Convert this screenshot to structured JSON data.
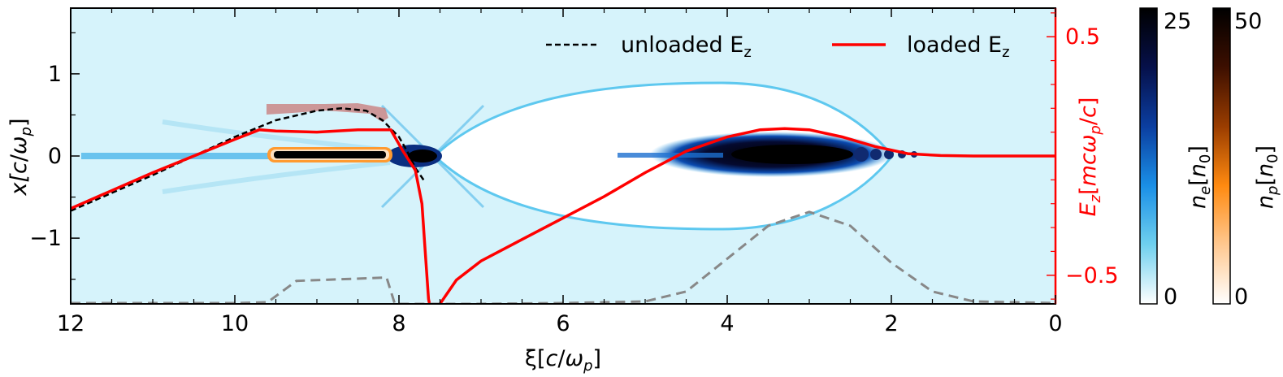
{
  "chart_data": {
    "type": "line",
    "main": {
      "xlabel": "ξ[c/ω_p]",
      "xlabel_parts": [
        "ξ[",
        "c",
        "/",
        "ω",
        "p",
        "]"
      ],
      "ylabel_parts": [
        "x[",
        "c",
        "/",
        "ω",
        "p",
        "]"
      ],
      "y2label_parts": [
        "E",
        "z",
        "[",
        "mcω",
        "p",
        "/",
        "c",
        "]"
      ],
      "xlim": [
        12,
        0
      ],
      "ylim": [
        -1.8,
        1.8
      ],
      "y2lim": [
        -0.62,
        0.62
      ],
      "xticks": [
        12,
        10,
        8,
        6,
        4,
        2,
        0
      ],
      "xtick_labels": [
        "12",
        "10",
        "8",
        "6",
        "4",
        "2",
        "0"
      ],
      "yticks": [
        1,
        0,
        -1
      ],
      "ytick_labels": [
        "1",
        "0",
        "−1"
      ],
      "y2ticks": [
        0.5,
        -0.5
      ],
      "y2tick_labels": [
        "0.5",
        "−0.5"
      ],
      "background_color": "#d6f3fb"
    },
    "legend": {
      "placement": "top-right",
      "entries": [
        {
          "text": "unloaded E",
          "sub": "z",
          "style": "dashed",
          "color": "#000000"
        },
        {
          "text": "loaded E",
          "sub": "z",
          "style": "solid",
          "color": "#ff0000"
        }
      ]
    },
    "series": [
      {
        "axis": "right",
        "color": "#000000",
        "style": "dashed",
        "points": [
          [
            12.0,
            -0.23
          ],
          [
            11.0,
            -0.08
          ],
          [
            10.0,
            0.08
          ],
          [
            9.5,
            0.15
          ],
          [
            9.0,
            0.19
          ],
          [
            8.7,
            0.2
          ],
          [
            8.4,
            0.19
          ],
          [
            8.2,
            0.15
          ],
          [
            8.0,
            0.08
          ],
          [
            7.9,
            0.02
          ],
          [
            7.8,
            -0.05
          ],
          [
            7.7,
            -0.1
          ]
        ]
      },
      {
        "axis": "right",
        "color": "#ff0000",
        "style": "solid",
        "points": [
          [
            12.0,
            -0.22
          ],
          [
            11.0,
            -0.07
          ],
          [
            10.0,
            0.07
          ],
          [
            9.7,
            0.11
          ],
          [
            9.5,
            0.105
          ],
          [
            9.0,
            0.1
          ],
          [
            8.5,
            0.11
          ],
          [
            8.1,
            0.11
          ],
          [
            7.95,
            0.02
          ],
          [
            7.8,
            -0.06
          ],
          [
            7.72,
            -0.2
          ],
          [
            7.68,
            -0.4
          ],
          [
            7.64,
            -0.6
          ],
          [
            7.58,
            -0.7
          ],
          [
            7.5,
            -0.62
          ],
          [
            7.3,
            -0.52
          ],
          [
            7.0,
            -0.44
          ],
          [
            6.5,
            -0.35
          ],
          [
            6.0,
            -0.26
          ],
          [
            5.5,
            -0.17
          ],
          [
            5.0,
            -0.07
          ],
          [
            4.5,
            0.02
          ],
          [
            4.0,
            0.08
          ],
          [
            3.6,
            0.11
          ],
          [
            3.3,
            0.115
          ],
          [
            3.0,
            0.11
          ],
          [
            2.6,
            0.08
          ],
          [
            2.2,
            0.04
          ],
          [
            1.8,
            0.01
          ],
          [
            1.4,
            0.002
          ],
          [
            1.0,
            0.0
          ],
          [
            0.0,
            0.0
          ]
        ]
      },
      {
        "axis": "left",
        "color": "#888888",
        "style": "dashed",
        "role": "driver-profile",
        "points": [
          [
            12.0,
            -1.79
          ],
          [
            10.0,
            -1.79
          ],
          [
            9.6,
            -1.78
          ],
          [
            9.25,
            -1.52
          ],
          [
            8.15,
            -1.48
          ],
          [
            8.05,
            -1.8
          ],
          [
            7.0,
            -1.8
          ],
          [
            6.0,
            -1.79
          ],
          [
            5.0,
            -1.77
          ],
          [
            4.5,
            -1.65
          ],
          [
            4.0,
            -1.25
          ],
          [
            3.5,
            -0.85
          ],
          [
            3.0,
            -0.68
          ],
          [
            2.5,
            -0.85
          ],
          [
            2.0,
            -1.3
          ],
          [
            1.5,
            -1.65
          ],
          [
            1.0,
            -1.77
          ],
          [
            0.0,
            -1.79
          ]
        ]
      }
    ],
    "colorbars": [
      {
        "label_parts": [
          "n",
          "e",
          "[",
          "n",
          "0",
          "]"
        ],
        "tick_labels": [
          "25",
          "0"
        ],
        "range": [
          0,
          25
        ],
        "colors": [
          "#ffffff",
          "#6fd0ee",
          "#1a8fe6",
          "#0b3ea0",
          "#06104a",
          "#000000"
        ]
      },
      {
        "label_parts": [
          "n",
          "p",
          "[",
          "n",
          "0",
          "]"
        ],
        "tick_labels": [
          "50",
          "0"
        ],
        "range": [
          0,
          50
        ],
        "colors": [
          "#ffffff",
          "#ffc890",
          "#ff8a10",
          "#9a3d00",
          "#3d0f00",
          "#000000"
        ]
      }
    ]
  }
}
